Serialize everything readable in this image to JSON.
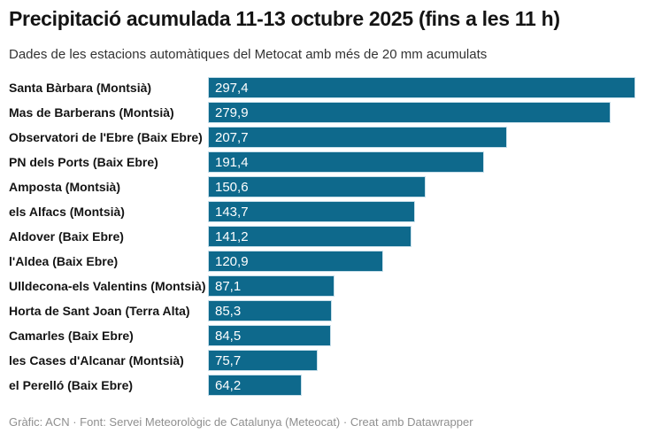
{
  "header": {
    "title": "Precipitació acumulada 11-13 octubre 2025 (fins a les 11 h)",
    "subtitle": "Dades de les estacions automàtiques del Metocat amb més de 20 mm acumulats"
  },
  "footer": {
    "credit": "Gràfic: ACN · Font: Servei Meteorològic de Catalunya (Meteocat) · Creat amb Datawrapper"
  },
  "chart_data": {
    "type": "bar",
    "orientation": "horizontal",
    "title": "Precipitació acumulada 11-13 octubre 2025 (fins a les 11 h)",
    "subtitle": "Dades de les estacions automàtiques del Metocat amb més de 20 mm acumulats",
    "unit": "mm",
    "xlim": [
      0,
      297.4
    ],
    "grid": false,
    "legend": false,
    "bar_color": "#0e698c",
    "bar_outline_color": "#c8dfea",
    "categories": [
      "Santa Bàrbara (Montsià)",
      "Mas de Barberans (Montsià)",
      "Observatori de l'Ebre (Baix Ebre)",
      "PN dels Ports (Baix Ebre)",
      "Amposta (Montsià)",
      "els Alfacs (Montsià)",
      "Aldover (Baix Ebre)",
      "l'Aldea (Baix Ebre)",
      "Ulldecona-els Valentins (Montsià)",
      "Horta de Sant Joan (Terra Alta)",
      "Camarles (Baix Ebre)",
      "les Cases d'Alcanar (Montsià)",
      "el Perelló (Baix Ebre)"
    ],
    "values": [
      297.4,
      279.9,
      207.7,
      191.4,
      150.6,
      143.7,
      141.2,
      120.9,
      87.1,
      85.3,
      84.5,
      75.7,
      64.2
    ],
    "value_labels": [
      "297,4",
      "279,9",
      "207,7",
      "191,4",
      "150,6",
      "143,7",
      "141,2",
      "120,9",
      "87,1",
      "85,3",
      "84,5",
      "75,7",
      "64,2"
    ]
  }
}
